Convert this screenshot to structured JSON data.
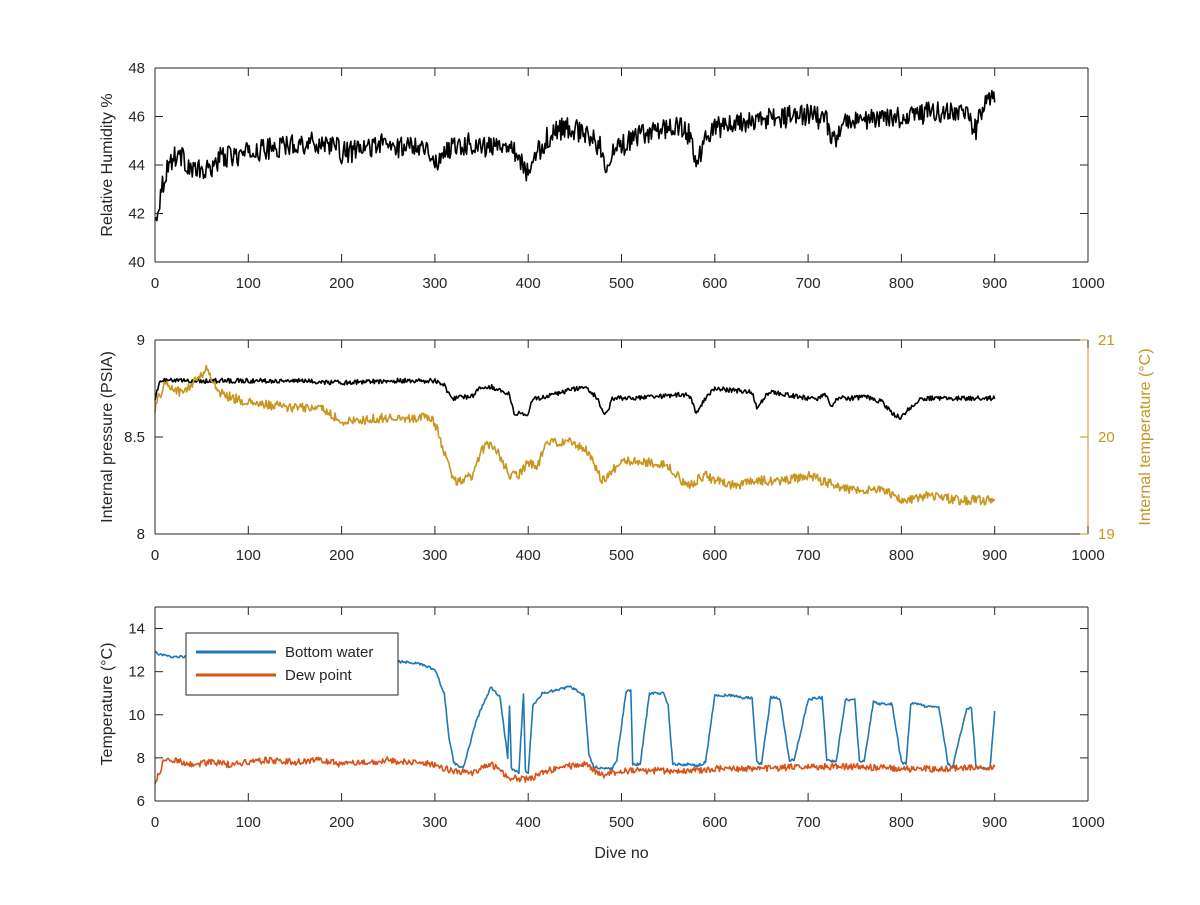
{
  "chart_data": [
    {
      "type": "line",
      "xlabel": "",
      "ylabel": "Relative Humidity %",
      "xlim": [
        0,
        1000
      ],
      "ylim": [
        40,
        48
      ],
      "x_ticks": [
        0,
        100,
        200,
        300,
        400,
        500,
        600,
        700,
        800,
        900,
        1000
      ],
      "y_ticks": [
        40,
        42,
        44,
        46,
        48
      ],
      "x_tick_labels": [
        "0",
        "100",
        "200",
        "300",
        "400",
        "500",
        "600",
        "700",
        "800",
        "900",
        "1000"
      ],
      "y_tick_labels": [
        "40",
        "42",
        "44",
        "46",
        "48"
      ],
      "grid": false,
      "series": [
        {
          "color": "#000000",
          "noise": 0.45,
          "x": [
            0,
            3,
            8,
            15,
            25,
            40,
            55,
            70,
            90,
            110,
            130,
            150,
            170,
            190,
            200,
            220,
            240,
            260,
            280,
            295,
            300,
            310,
            320,
            340,
            360,
            380,
            400,
            410,
            420,
            440,
            460,
            480,
            485,
            490,
            500,
            520,
            540,
            560,
            575,
            580,
            590,
            600,
            620,
            640,
            660,
            680,
            700,
            720,
            725,
            740,
            760,
            780,
            800,
            820,
            840,
            860,
            870,
            880,
            890,
            900
          ],
          "y": [
            41.6,
            42.2,
            43.2,
            44.1,
            44.5,
            43.8,
            43.7,
            44.3,
            44.4,
            44.6,
            44.7,
            44.9,
            44.9,
            44.9,
            44.5,
            44.6,
            44.9,
            44.7,
            44.9,
            44.6,
            43.9,
            44.6,
            44.8,
            44.9,
            44.7,
            45.0,
            43.6,
            44.5,
            45.1,
            45.6,
            45.3,
            44.7,
            43.6,
            44.5,
            44.8,
            45.2,
            45.5,
            45.6,
            45.2,
            44.0,
            45.1,
            45.5,
            45.7,
            45.8,
            45.9,
            46.0,
            46.1,
            45.8,
            44.9,
            45.7,
            45.9,
            45.9,
            46.0,
            46.1,
            46.2,
            46.1,
            46.0,
            45.5,
            46.8,
            46.7
          ]
        }
      ]
    },
    {
      "type": "line",
      "xlabel": "",
      "ylabel": "Internal pressure (PSIA)",
      "ylabel_right": "Internal temperature (°C)",
      "xlim": [
        0,
        1000
      ],
      "ylim": [
        8,
        9
      ],
      "ylim_right": [
        19,
        21
      ],
      "x_ticks": [
        0,
        100,
        200,
        300,
        400,
        500,
        600,
        700,
        800,
        900,
        1000
      ],
      "y_ticks": [
        8,
        8.5,
        9
      ],
      "y_ticks_right": [
        19,
        20,
        21
      ],
      "x_tick_labels": [
        "0",
        "100",
        "200",
        "300",
        "400",
        "500",
        "600",
        "700",
        "800",
        "900",
        "1000"
      ],
      "y_tick_labels": [
        "8",
        "8.5",
        "9"
      ],
      "y_tick_labels_right": [
        "19",
        "20",
        "21"
      ],
      "grid": false,
      "axis_color_right": "#c8961e",
      "series": [
        {
          "axis": "left",
          "color": "#000000",
          "noise": 0.012,
          "x": [
            0,
            5,
            10,
            50,
            100,
            150,
            200,
            250,
            300,
            310,
            315,
            320,
            340,
            350,
            360,
            380,
            385,
            400,
            405,
            410,
            460,
            475,
            480,
            485,
            490,
            500,
            510,
            570,
            575,
            580,
            585,
            590,
            600,
            640,
            645,
            650,
            655,
            660,
            700,
            710,
            720,
            725,
            730,
            750,
            760,
            780,
            790,
            800,
            805,
            820,
            900
          ],
          "y": [
            8.7,
            8.78,
            8.79,
            8.79,
            8.79,
            8.79,
            8.78,
            8.79,
            8.79,
            8.77,
            8.72,
            8.7,
            8.71,
            8.76,
            8.76,
            8.72,
            8.62,
            8.62,
            8.7,
            8.7,
            8.76,
            8.7,
            8.62,
            8.63,
            8.7,
            8.7,
            8.7,
            8.72,
            8.69,
            8.63,
            8.66,
            8.7,
            8.75,
            8.73,
            8.65,
            8.68,
            8.72,
            8.73,
            8.7,
            8.7,
            8.72,
            8.65,
            8.7,
            8.7,
            8.71,
            8.68,
            8.62,
            8.6,
            8.63,
            8.7,
            8.7
          ]
        },
        {
          "axis": "right",
          "color": "#c8961e",
          "noise": 0.05,
          "x": [
            0,
            10,
            30,
            55,
            70,
            100,
            150,
            180,
            200,
            250,
            295,
            300,
            310,
            320,
            330,
            340,
            350,
            360,
            370,
            380,
            390,
            400,
            410,
            420,
            440,
            460,
            480,
            500,
            520,
            550,
            570,
            590,
            600,
            620,
            650,
            670,
            700,
            730,
            750,
            780,
            800,
            830,
            860,
            880,
            900
          ],
          "y": [
            20.3,
            20.55,
            20.45,
            20.7,
            20.45,
            20.35,
            20.3,
            20.3,
            20.15,
            20.2,
            20.2,
            20.15,
            19.85,
            19.55,
            19.55,
            19.6,
            19.85,
            19.95,
            19.8,
            19.6,
            19.6,
            19.75,
            19.7,
            19.95,
            19.95,
            19.9,
            19.55,
            19.75,
            19.75,
            19.7,
            19.5,
            19.6,
            19.55,
            19.5,
            19.55,
            19.55,
            19.6,
            19.5,
            19.45,
            19.45,
            19.35,
            19.4,
            19.35,
            19.35,
            19.35
          ]
        }
      ]
    },
    {
      "type": "line",
      "xlabel": "Dive no",
      "ylabel": "Temperature (°C)",
      "xlim": [
        0,
        1000
      ],
      "ylim": [
        6,
        15
      ],
      "x_ticks": [
        0,
        100,
        200,
        300,
        400,
        500,
        600,
        700,
        800,
        900,
        1000
      ],
      "y_ticks": [
        6,
        8,
        10,
        12,
        14
      ],
      "x_tick_labels": [
        "0",
        "100",
        "200",
        "300",
        "400",
        "500",
        "600",
        "700",
        "800",
        "900",
        "1000"
      ],
      "y_tick_labels": [
        "6",
        "8",
        "10",
        "12",
        "14"
      ],
      "grid": false,
      "legend_position": "top-left",
      "series": [
        {
          "name": "Bottom water",
          "color": "#1f77b4",
          "noise": 0.06,
          "x": [
            0,
            5,
            15,
            30,
            100,
            160,
            200,
            250,
            280,
            300,
            310,
            315,
            320,
            330,
            345,
            360,
            370,
            378,
            380,
            382,
            385,
            390,
            395,
            397,
            400,
            405,
            415,
            425,
            445,
            460,
            465,
            470,
            480,
            490,
            495,
            505,
            510,
            512,
            520,
            530,
            535,
            545,
            550,
            555,
            575,
            580,
            590,
            600,
            610,
            620,
            630,
            640,
            645,
            650,
            660,
            665,
            670,
            680,
            685,
            700,
            710,
            715,
            720,
            730,
            740,
            750,
            755,
            760,
            770,
            775,
            790,
            800,
            805,
            810,
            820,
            825,
            840,
            850,
            855,
            870,
            875,
            880,
            890,
            895,
            900
          ],
          "y": [
            12.9,
            12.8,
            12.7,
            12.7,
            12.7,
            12.6,
            12.6,
            12.5,
            12.4,
            12.1,
            11.0,
            9.0,
            7.8,
            7.5,
            9.8,
            11.3,
            10.8,
            8.0,
            10.4,
            7.5,
            7.4,
            7.3,
            11.0,
            7.4,
            7.3,
            10.4,
            11.0,
            11.1,
            11.3,
            10.9,
            8.2,
            7.6,
            7.5,
            7.5,
            7.9,
            11.1,
            11.1,
            7.7,
            7.7,
            11.0,
            11.0,
            11.0,
            10.4,
            7.7,
            7.7,
            7.6,
            7.8,
            10.9,
            10.9,
            10.9,
            10.8,
            10.8,
            7.8,
            7.7,
            10.8,
            10.8,
            10.7,
            7.9,
            7.9,
            10.7,
            10.8,
            10.8,
            7.9,
            7.8,
            10.7,
            10.7,
            7.9,
            7.8,
            10.6,
            10.5,
            10.5,
            7.8,
            7.7,
            10.5,
            10.5,
            10.4,
            10.4,
            7.7,
            7.6,
            10.3,
            10.3,
            7.6,
            7.5,
            7.5,
            10.2
          ]
        },
        {
          "name": "Dew point",
          "color": "#d95319",
          "noise": 0.15,
          "x": [
            0,
            10,
            20,
            40,
            60,
            80,
            100,
            120,
            150,
            180,
            200,
            230,
            250,
            270,
            300,
            310,
            320,
            340,
            360,
            380,
            400,
            420,
            440,
            460,
            480,
            500,
            540,
            580,
            600,
            650,
            700,
            750,
            800,
            850,
            900
          ],
          "y": [
            6.8,
            7.9,
            7.9,
            7.7,
            7.8,
            7.7,
            7.8,
            7.9,
            7.8,
            7.9,
            7.7,
            7.8,
            7.9,
            7.8,
            7.7,
            7.5,
            7.4,
            7.3,
            7.7,
            7.1,
            7.0,
            7.4,
            7.6,
            7.7,
            7.2,
            7.4,
            7.4,
            7.4,
            7.5,
            7.5,
            7.6,
            7.6,
            7.5,
            7.5,
            7.6
          ]
        }
      ]
    }
  ]
}
